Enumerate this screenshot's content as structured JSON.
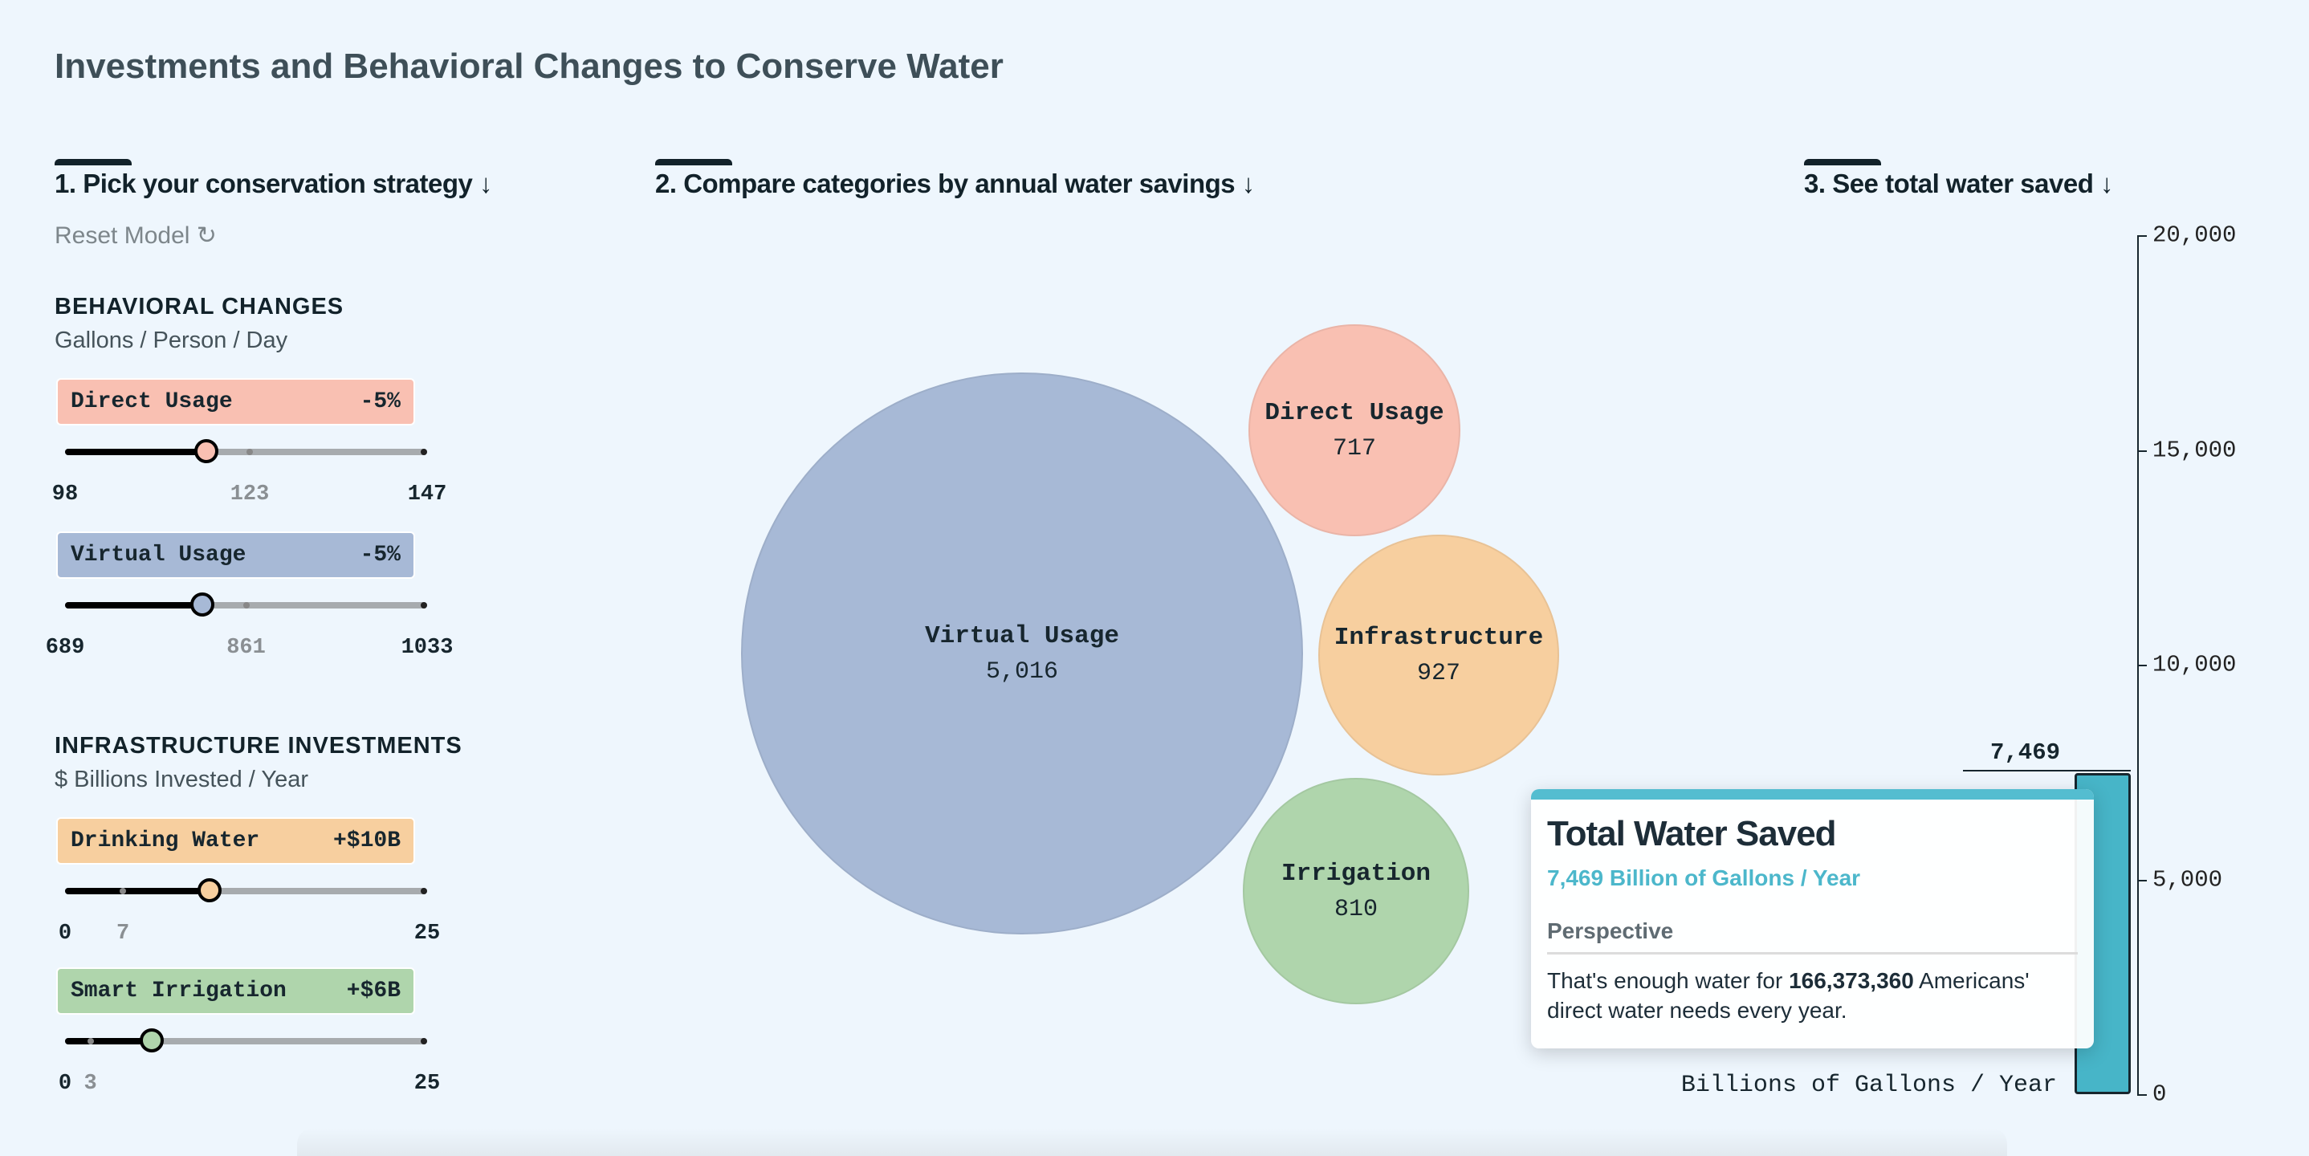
{
  "title": "Investments and Behavioral Changes to Conserve Water",
  "steps": [
    "1. Pick your conservation strategy ↓",
    "2. Compare categories by annual water savings ↓",
    "3. See total water saved ↓"
  ],
  "reset_label": "Reset Model ↻",
  "behavioral": {
    "heading": "BEHAVIORAL CHANGES",
    "unit": "Gallons / Person / Day",
    "sliders": [
      {
        "label": "Direct Usage",
        "value": "-5%",
        "color": "#f9c0b2",
        "min": "98",
        "mid": "123",
        "max": "147",
        "position": 0.39
      },
      {
        "label": "Virtual Usage",
        "value": "-5%",
        "color": "#a7b9d6",
        "min": "689",
        "mid": "861",
        "max": "1033",
        "position": 0.38
      }
    ]
  },
  "infrastructure": {
    "heading": "INFRASTRUCTURE INVESTMENTS",
    "unit": "$ Billions Invested / Year",
    "sliders": [
      {
        "label": "Drinking Water",
        "value": "+$10B",
        "color": "#f7cf9f",
        "min": "0",
        "mid": "7",
        "max": "25",
        "position": 0.4
      },
      {
        "label": "Smart Irrigation",
        "value": "+$6B",
        "color": "#afd5ac",
        "min": "0",
        "mid": "3",
        "max": "25",
        "position": 0.24
      }
    ]
  },
  "bubbles": [
    {
      "label": "Virtual Usage",
      "value": "5,016",
      "color": "#a7b9d6"
    },
    {
      "label": "Direct Usage",
      "value": "717",
      "color": "#f9c0b2"
    },
    {
      "label": "Infrastructure",
      "value": "927",
      "color": "#f7cf9f"
    },
    {
      "label": "Irrigation",
      "value": "810",
      "color": "#afd5ac"
    }
  ],
  "total_chart": {
    "ticks": [
      "20,000",
      "15,000",
      "10,000",
      "5,000",
      "0"
    ],
    "value": 7469,
    "value_label": "7,469",
    "max": 20000,
    "axis_label": "Billions of Gallons / Year",
    "bar_color": "#47b5c8"
  },
  "tooltip": {
    "title": "Total Water Saved",
    "subtitle": "7,469 Billion of Gallons / Year",
    "section": "Perspective",
    "text_before": "That's enough water for ",
    "text_bold": "166,373,360",
    "text_after": " Americans' direct water needs every year."
  }
}
